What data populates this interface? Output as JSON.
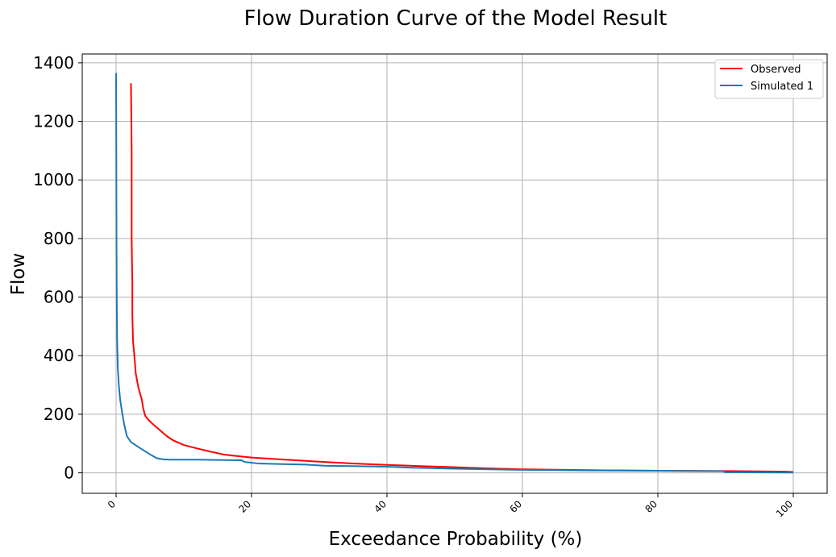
{
  "chart_data": {
    "type": "line",
    "title": "Flow Duration Curve of the Model Result",
    "xlabel": "Exceedance Probability (%)",
    "ylabel": "Flow",
    "xlim": [
      -5,
      105
    ],
    "ylim": [
      -70,
      1430
    ],
    "xticks": [
      0,
      20,
      40,
      60,
      80,
      100
    ],
    "yticks": [
      0,
      200,
      400,
      600,
      800,
      1000,
      1200,
      1400
    ],
    "grid": true,
    "legend_position": "top-right",
    "series": [
      {
        "name": "Observed",
        "color": "#ff0000",
        "points": [
          [
            2.2,
            1330
          ],
          [
            2.3,
            1100
          ],
          [
            2.3,
            800
          ],
          [
            2.4,
            650
          ],
          [
            2.4,
            540
          ],
          [
            2.5,
            450
          ],
          [
            2.7,
            400
          ],
          [
            2.9,
            340
          ],
          [
            3.3,
            290
          ],
          [
            3.8,
            250
          ],
          [
            4.0,
            220
          ],
          [
            4.3,
            195
          ],
          [
            4.8,
            180
          ],
          [
            5.5,
            165
          ],
          [
            6.5,
            145
          ],
          [
            7.5,
            125
          ],
          [
            8.5,
            110
          ],
          [
            10,
            95
          ],
          [
            12,
            83
          ],
          [
            14,
            72
          ],
          [
            16,
            62
          ],
          [
            18,
            57
          ],
          [
            20,
            52
          ],
          [
            25,
            45
          ],
          [
            30,
            38
          ],
          [
            35,
            32
          ],
          [
            40,
            27
          ],
          [
            45,
            23
          ],
          [
            50,
            19
          ],
          [
            55,
            15
          ],
          [
            60,
            12
          ],
          [
            70,
            9
          ],
          [
            80,
            7
          ],
          [
            90,
            6
          ],
          [
            95,
            5
          ],
          [
            99,
            4
          ],
          [
            100,
            3
          ]
        ]
      },
      {
        "name": "Simulated 1",
        "color": "#1f77b4",
        "points": [
          [
            0,
            1365
          ],
          [
            0.03,
            1100
          ],
          [
            0.06,
            800
          ],
          [
            0.1,
            600
          ],
          [
            0.15,
            460
          ],
          [
            0.25,
            360
          ],
          [
            0.4,
            300
          ],
          [
            0.6,
            250
          ],
          [
            0.9,
            205
          ],
          [
            1.2,
            165
          ],
          [
            1.6,
            125
          ],
          [
            2.2,
            105
          ],
          [
            3.5,
            85
          ],
          [
            5,
            63
          ],
          [
            6,
            50
          ],
          [
            7,
            46
          ],
          [
            8,
            45
          ],
          [
            12,
            45
          ],
          [
            15,
            44
          ],
          [
            18.5,
            43
          ],
          [
            19,
            37
          ],
          [
            21,
            32
          ],
          [
            24,
            30
          ],
          [
            28,
            28
          ],
          [
            31,
            24
          ],
          [
            35,
            23
          ],
          [
            40,
            21
          ],
          [
            43,
            18
          ],
          [
            50,
            14
          ],
          [
            60,
            10
          ],
          [
            70,
            8
          ],
          [
            80,
            7
          ],
          [
            89.5,
            6
          ],
          [
            90,
            2
          ],
          [
            100,
            1
          ]
        ]
      }
    ]
  }
}
